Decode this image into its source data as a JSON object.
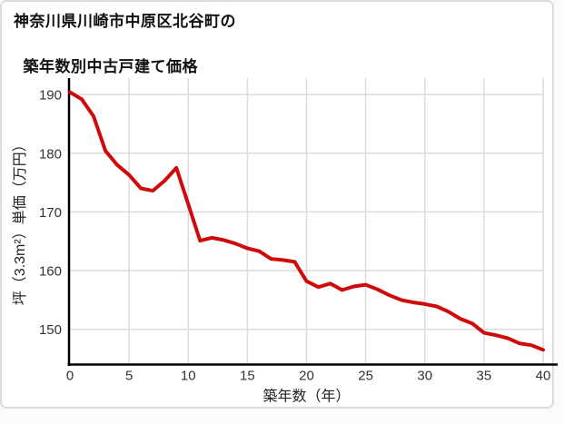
{
  "header": {
    "title_line1": "神奈川県川崎市中原区北谷町の",
    "title_line2": "築年数別中古戸建て価格"
  },
  "chart_data": {
    "type": "line",
    "title": "神奈川県川崎市中原区北谷町の築年数別中古戸建て価格",
    "xlabel": "築年数（年）",
    "ylabel": "坪（3.3m²）単価（万円）",
    "x": [
      0,
      1,
      2,
      3,
      4,
      5,
      6,
      7,
      8,
      9,
      10,
      11,
      12,
      13,
      14,
      15,
      16,
      17,
      18,
      19,
      20,
      21,
      22,
      23,
      24,
      25,
      26,
      27,
      28,
      29,
      30,
      31,
      32,
      33,
      34,
      35,
      36,
      37,
      38,
      39,
      40
    ],
    "series": [
      {
        "name": "坪単価（万円）",
        "values": [
          190.4,
          189.2,
          186.3,
          180.4,
          178.0,
          176.3,
          174.0,
          173.6,
          175.3,
          177.5,
          171.3,
          165.1,
          165.6,
          165.2,
          164.6,
          163.8,
          163.3,
          162.0,
          161.8,
          161.5,
          158.2,
          157.2,
          157.8,
          156.7,
          157.3,
          157.6,
          156.8,
          155.8,
          155.0,
          154.6,
          154.3,
          153.9,
          153.0,
          151.8,
          151.0,
          149.4,
          149.0,
          148.5,
          147.6,
          147.3,
          146.5
        ]
      }
    ],
    "xlim": [
      0,
      40
    ],
    "ylim": [
      144,
      192.8
    ],
    "x_ticks": [
      0,
      5,
      10,
      15,
      20,
      25,
      30,
      35,
      40
    ],
    "y_ticks": [
      150,
      160,
      170,
      180,
      190
    ],
    "grid": true,
    "legend": "none",
    "line_color": "#cf0a0a",
    "grid_color": "#dcdcdc",
    "axis_color": "#000000",
    "tick_color": "#333333"
  }
}
